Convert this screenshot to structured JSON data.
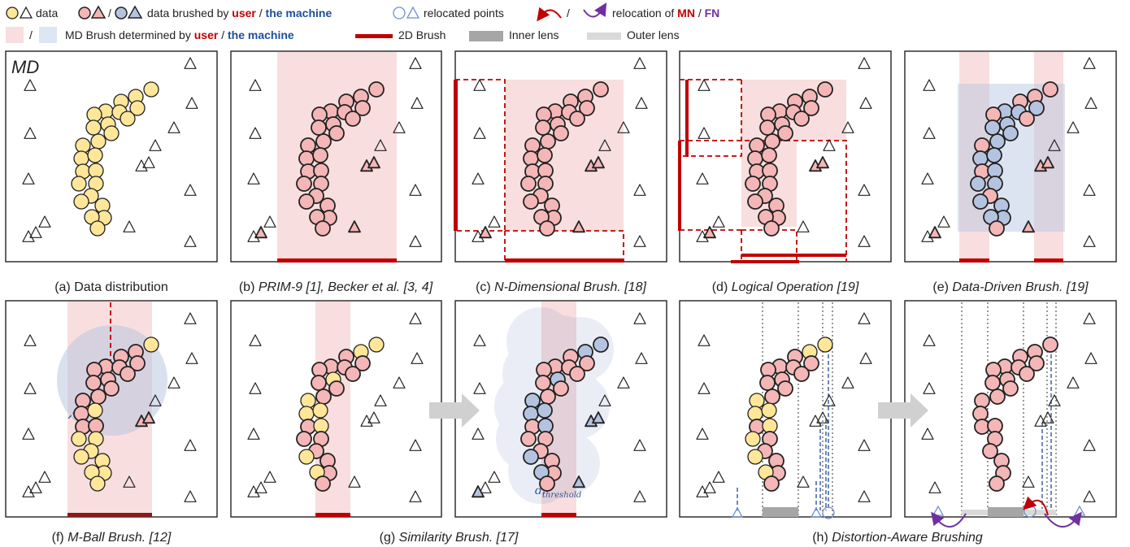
{
  "colors": {
    "yellow": "#ffe699",
    "pink": "#f4b6b6",
    "blue": "#b4c4e0",
    "brush_user": "#f8dede",
    "brush_machine": "#dde6f3",
    "red": "#c00000",
    "blue_text": "#1f4e9c",
    "purple": "#7030a0",
    "inner_lens": "#a6a6a6",
    "outer_lens": "#d9d9d9"
  },
  "legend": {
    "data": "data",
    "brushed_pre": "data brushed by",
    "user": "user",
    "slash": "/",
    "machine": "the machine",
    "relocated": "relocated points",
    "relocation_of": "relocation of",
    "mn": "MN",
    "fn": "FN",
    "md_brush_pre": "MD Brush determined by",
    "brush_2d": "2D Brush",
    "inner_lens": "Inner lens",
    "outer_lens": "Outer lens"
  },
  "panels": {
    "md_label": "MD",
    "d_threshold": "d",
    "d_threshold_sub": "threshold",
    "captions": {
      "a": "(a) Data distribution",
      "b_pre": "(b) ",
      "b_it": "PRIM-9 [1], Becker et al. [3, 4]",
      "c_pre": "(c) ",
      "c_it": "N-Dimensional Brush. [18]",
      "d_pre": "(d) ",
      "d_it": "Logical Operation [19]",
      "e_pre": "(e) ",
      "e_it": "Data-Driven Brush. [19]",
      "f_pre": "(f) ",
      "f_it": "M-Ball Brush. [12]",
      "g_pre": "(g) ",
      "g_it": "Similarity Brush. [17]",
      "h_pre": "(h) ",
      "h_it": "Distortion-Aware Brushing"
    }
  }
}
